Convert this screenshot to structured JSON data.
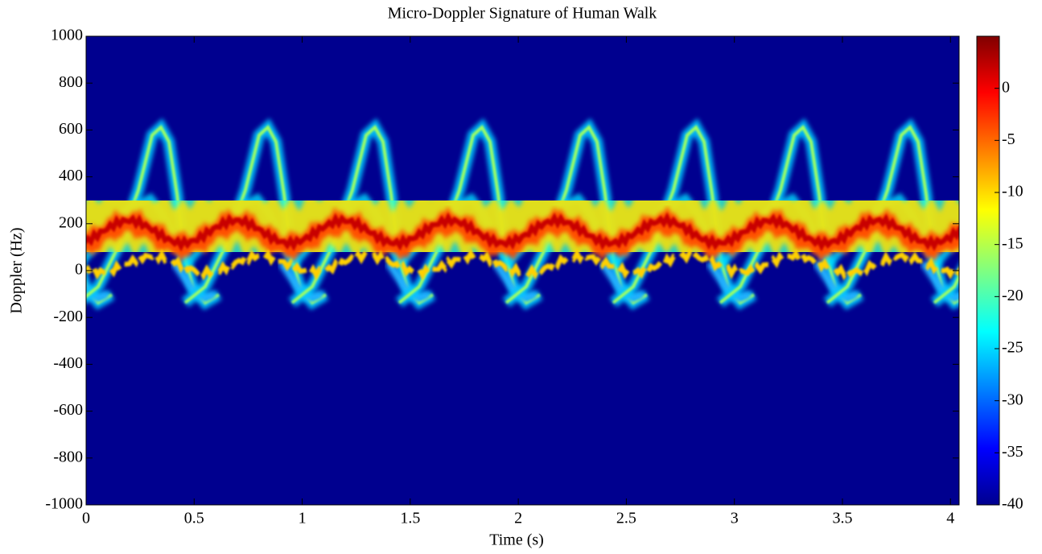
{
  "chart_data": {
    "type": "spectrogram",
    "title": "Micro-Doppler Signature of Human Walk",
    "x_label": "Time (s)",
    "y_label": "Doppler (Hz)",
    "xlim": [
      0,
      4.04
    ],
    "xticks": [
      0,
      0.5,
      1,
      1.5,
      2,
      2.5,
      3,
      3.5,
      4
    ],
    "ylim": [
      -1000,
      1000
    ],
    "yticks": [
      -1000,
      -800,
      -600,
      -400,
      -200,
      0,
      200,
      400,
      600,
      800,
      1000
    ],
    "clim": [
      -40,
      5
    ],
    "cticks": [
      -40,
      -35,
      -30,
      -25,
      -20,
      -15,
      -10,
      -5,
      0
    ],
    "colormap": "jet"
  }
}
